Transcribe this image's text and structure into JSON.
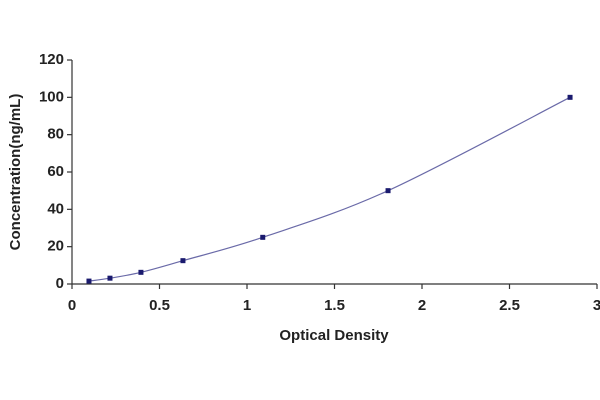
{
  "chart_data": {
    "type": "scatter",
    "x_label": "Optical Density",
    "y_label": "Concentration(ng/mL)",
    "x": [
      0.097,
      0.217,
      0.394,
      0.634,
      1.09,
      1.806,
      2.846
    ],
    "values": [
      1.56,
      3.12,
      6.25,
      12.5,
      25,
      50,
      100
    ],
    "color": "#1a1a6e",
    "line_color": "#6a6aa8",
    "fit_line": true,
    "xlim": [
      0,
      3
    ],
    "xticks": [
      0,
      0.5,
      1,
      1.5,
      2,
      2.5,
      3
    ],
    "ylim": [
      0,
      120
    ],
    "yticks": [
      0,
      20,
      40,
      60,
      80,
      100,
      120
    ]
  }
}
